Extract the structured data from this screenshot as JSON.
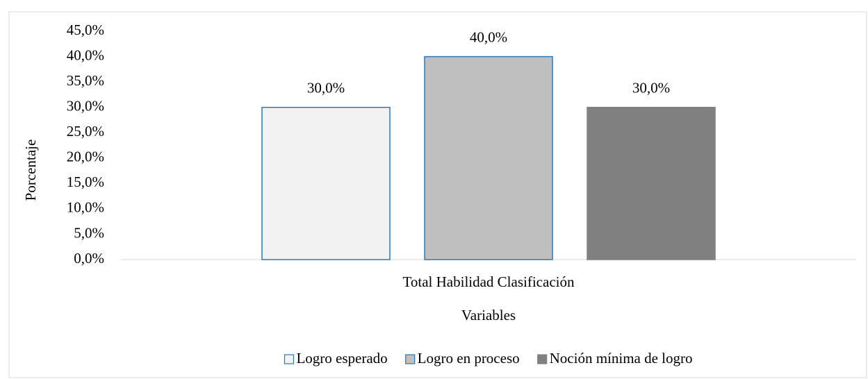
{
  "chart_data": {
    "type": "bar",
    "categories": [
      "Total Habilidad Clasificación"
    ],
    "series": [
      {
        "name": "Logro esperado",
        "color": "#f2f2f2",
        "edgecolor": "#2e75b6",
        "values": [
          30
        ],
        "value_labels": [
          "30,0%"
        ]
      },
      {
        "name": "Logro en proceso",
        "color": "#bfbfbf",
        "edgecolor": "#2e75b6",
        "values": [
          40
        ],
        "value_labels": [
          "40,0%"
        ]
      },
      {
        "name": "Noción mínima de logro",
        "color": "#808080",
        "edgecolor": "#808080",
        "values": [
          30
        ],
        "value_labels": [
          "30,0%"
        ]
      }
    ],
    "ylabel": "Porcentaje",
    "xlabel": "Variables",
    "ylim": [
      0,
      45
    ],
    "yticks": [
      {
        "value": 0,
        "label": "0,0%"
      },
      {
        "value": 5,
        "label": "5,0%"
      },
      {
        "value": 10,
        "label": "10,0%"
      },
      {
        "value": 15,
        "label": "15,0%"
      },
      {
        "value": 20,
        "label": "20,0%"
      },
      {
        "value": 25,
        "label": "25,0%"
      },
      {
        "value": 30,
        "label": "30,0%"
      },
      {
        "value": 35,
        "label": "35,0%"
      },
      {
        "value": 40,
        "label": "40,0%"
      },
      {
        "value": 45,
        "label": "45,0%"
      }
    ],
    "grid": false,
    "legend": "bottom"
  }
}
